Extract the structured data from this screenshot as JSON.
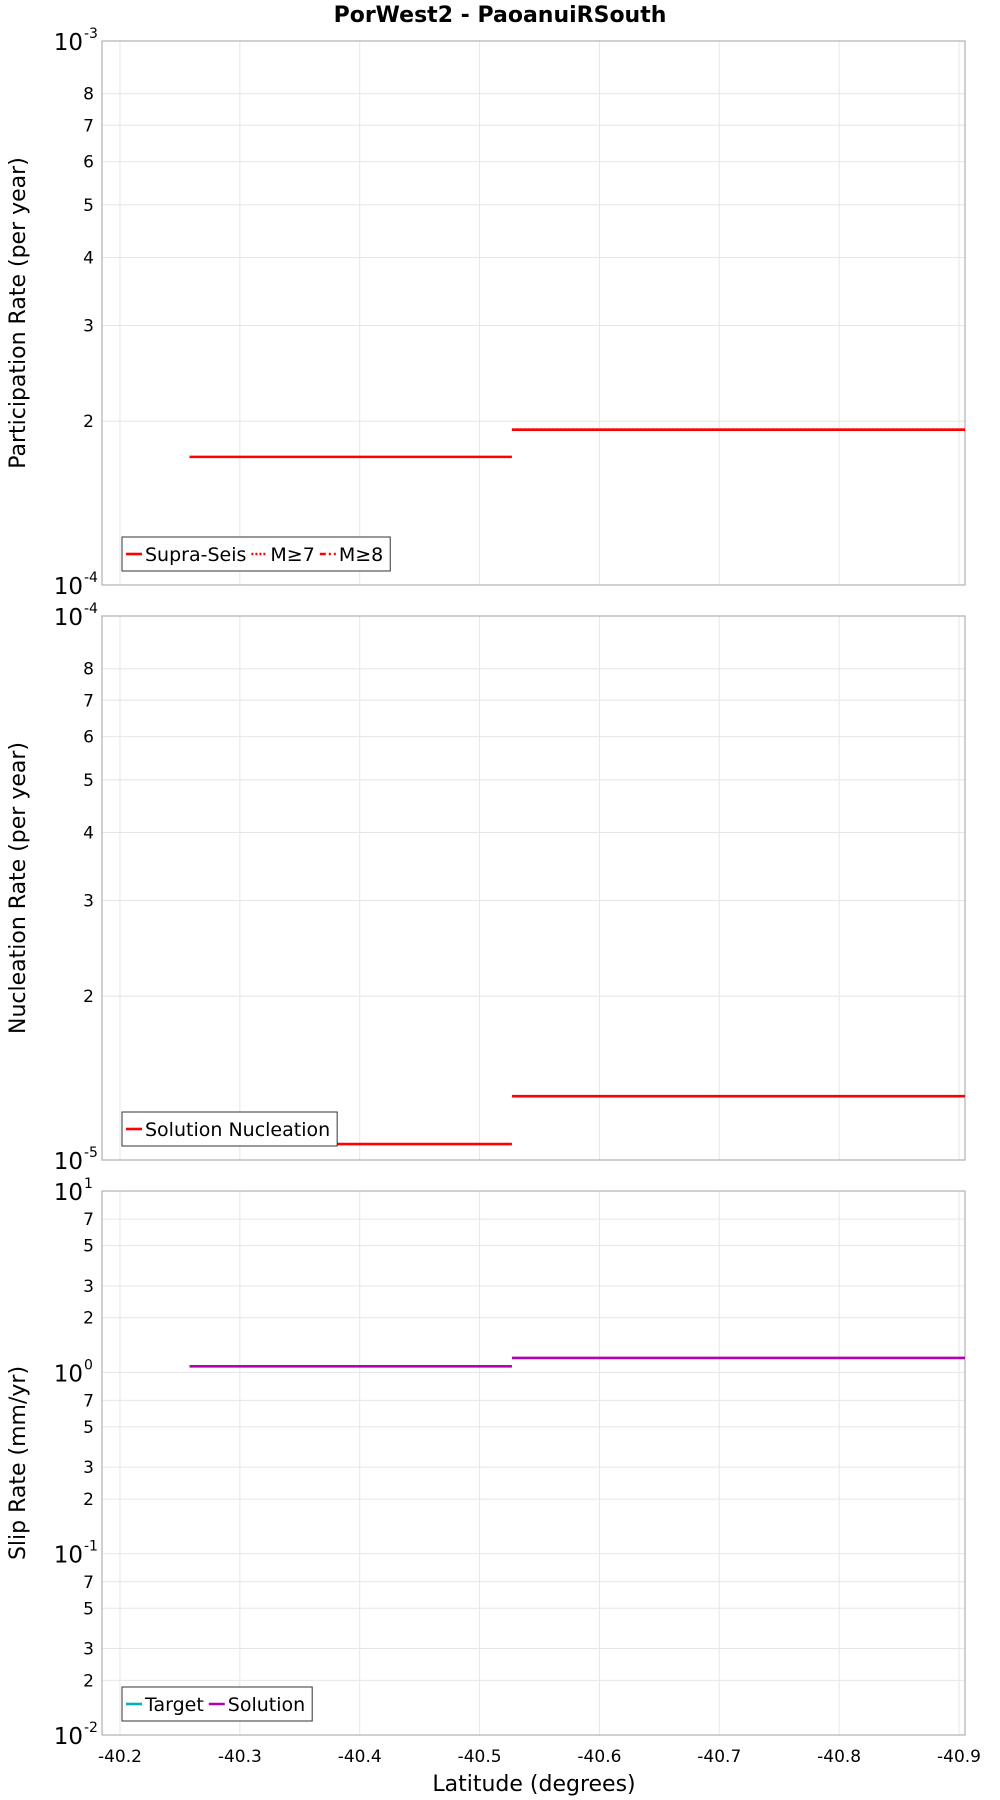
{
  "chart_data": {
    "type": "line",
    "title": "PorWest2 - PaoanuiRSouth",
    "xlabel": "Latitude (degrees)",
    "xlim": [
      -40.185,
      -40.905
    ],
    "x_ticks": [
      -40.2,
      -40.3,
      -40.4,
      -40.5,
      -40.6,
      -40.7,
      -40.8,
      -40.9
    ],
    "x_tick_labels": [
      "-40.2",
      "-40.3",
      "-40.4",
      "-40.5",
      "-40.6",
      "-40.7",
      "-40.8",
      "-40.9"
    ],
    "panels": [
      {
        "id": "participation",
        "ylabel": "Participation Rate (per year)",
        "yscale": "log",
        "ylim": [
          0.0001,
          0.001
        ],
        "decade_labels": [
          {
            "value": 0.001,
            "base": "10",
            "exp": "-3"
          },
          {
            "value": 0.0001,
            "base": "10",
            "exp": "-4"
          }
        ],
        "minor_ticks": [
          {
            "value": 0.0008,
            "label": "8"
          },
          {
            "value": 0.0007,
            "label": "7"
          },
          {
            "value": 0.0006,
            "label": "6"
          },
          {
            "value": 0.0005,
            "label": "5"
          },
          {
            "value": 0.0004,
            "label": "4"
          },
          {
            "value": 0.0003,
            "label": "3"
          },
          {
            "value": 0.0002,
            "label": "2"
          }
        ],
        "series": [
          {
            "name": "Supra-Seis",
            "color": "#ff0000",
            "dash": "solid",
            "segments": [
              {
                "x": [
                  -40.258,
                  -40.527
                ],
                "y": [
                  0.000172,
                  0.000172
                ]
              },
              {
                "x": [
                  -40.527,
                  -40.905
                ],
                "y": [
                  0.000193,
                  0.000193
                ]
              }
            ]
          },
          {
            "name": "M≥7",
            "color": "#ff0000",
            "dash": "dotted",
            "segments": [
              {
                "x": [
                  -40.527,
                  -40.905
                ],
                "y": [
                  0.000193,
                  0.000193
                ]
              }
            ]
          },
          {
            "name": "M≥8",
            "color": "#ff0000",
            "dash": "dashdot",
            "segments": []
          }
        ]
      },
      {
        "id": "nucleation",
        "ylabel": "Nucleation Rate (per year)",
        "yscale": "log",
        "ylim": [
          1e-05,
          0.0001
        ],
        "decade_labels": [
          {
            "value": 0.0001,
            "base": "10",
            "exp": "-4"
          },
          {
            "value": 1e-05,
            "base": "10",
            "exp": "-5"
          }
        ],
        "minor_ticks": [
          {
            "value": 8e-05,
            "label": "8"
          },
          {
            "value": 7e-05,
            "label": "7"
          },
          {
            "value": 6e-05,
            "label": "6"
          },
          {
            "value": 5e-05,
            "label": "5"
          },
          {
            "value": 4e-05,
            "label": "4"
          },
          {
            "value": 3e-05,
            "label": "3"
          },
          {
            "value": 2e-05,
            "label": "2"
          }
        ],
        "series": [
          {
            "name": "Solution Nucleation",
            "color": "#ff0000",
            "dash": "solid",
            "segments": [
              {
                "x": [
                  -40.258,
                  -40.527
                ],
                "y": [
                  1.07e-05,
                  1.07e-05
                ]
              },
              {
                "x": [
                  -40.527,
                  -40.905
                ],
                "y": [
                  1.31e-05,
                  1.31e-05
                ]
              }
            ]
          }
        ]
      },
      {
        "id": "slip",
        "ylabel": "Slip Rate (mm/yr)",
        "yscale": "log",
        "ylim": [
          0.01,
          10
        ],
        "decade_labels": [
          {
            "value": 10,
            "base": "10",
            "exp": "1"
          },
          {
            "value": 1,
            "base": "10",
            "exp": "0"
          },
          {
            "value": 0.1,
            "base": "10",
            "exp": "-1"
          },
          {
            "value": 0.01,
            "base": "10",
            "exp": "-2"
          }
        ],
        "minor_ticks": [
          {
            "value": 7,
            "label": "7"
          },
          {
            "value": 5,
            "label": "5"
          },
          {
            "value": 3,
            "label": "3"
          },
          {
            "value": 2,
            "label": "2"
          },
          {
            "value": 0.7,
            "label": "7"
          },
          {
            "value": 0.5,
            "label": "5"
          },
          {
            "value": 0.3,
            "label": "3"
          },
          {
            "value": 0.2,
            "label": "2"
          },
          {
            "value": 0.07,
            "label": "7"
          },
          {
            "value": 0.05,
            "label": "5"
          },
          {
            "value": 0.03,
            "label": "3"
          },
          {
            "value": 0.02,
            "label": "2"
          }
        ],
        "series": [
          {
            "name": "Target",
            "color": "#00b3b3",
            "dash": "solid",
            "segments": []
          },
          {
            "name": "Solution",
            "color": "#b300b3",
            "dash": "solid",
            "segments": [
              {
                "x": [
                  -40.258,
                  -40.527
                ],
                "y": [
                  1.08,
                  1.08
                ]
              },
              {
                "x": [
                  -40.527,
                  -40.905
                ],
                "y": [
                  1.2,
                  1.2
                ]
              }
            ]
          }
        ]
      }
    ]
  }
}
